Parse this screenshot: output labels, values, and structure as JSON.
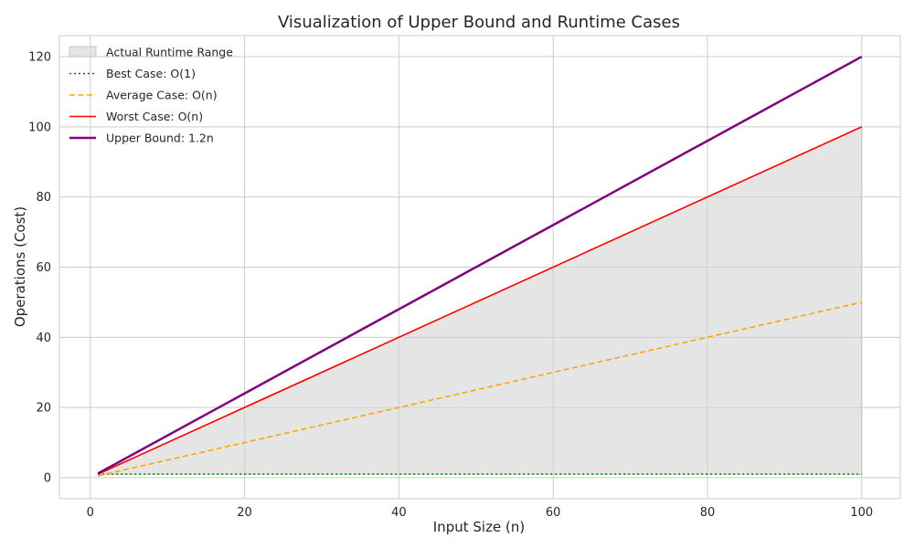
{
  "chart_data": {
    "type": "line",
    "title": "Visualization of Upper Bound and Runtime Cases",
    "xlabel": "Input Size (n)",
    "ylabel": "Operations (Cost)",
    "xlim": [
      -4,
      105
    ],
    "ylim": [
      -6,
      126
    ],
    "xticks": [
      0,
      20,
      40,
      60,
      80,
      100
    ],
    "yticks": [
      0,
      20,
      40,
      60,
      80,
      100,
      120
    ],
    "grid": true,
    "legend_position": "top-left",
    "x": [
      1,
      100
    ],
    "fill_band": {
      "name": "Actual Runtime Range",
      "lower": [
        1,
        1
      ],
      "upper": [
        1,
        100
      ],
      "color": "#d3d3d3"
    },
    "series": [
      {
        "name": "Best Case: O(1)",
        "values": [
          1,
          1
        ],
        "color": "#008000",
        "style": "dotted"
      },
      {
        "name": "Average Case: O(n)",
        "values": [
          0.5,
          50
        ],
        "color": "#ffa500",
        "style": "dashed"
      },
      {
        "name": "Worst Case: O(n)",
        "values": [
          1,
          100
        ],
        "color": "#ff0000",
        "style": "solid"
      },
      {
        "name": "Upper Bound: 1.2n",
        "values": [
          1.2,
          120
        ],
        "color": "#800080",
        "style": "solid-thick"
      }
    ]
  }
}
